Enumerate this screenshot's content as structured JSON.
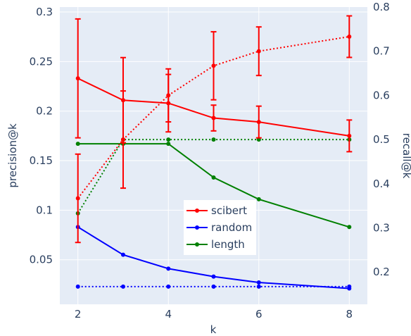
{
  "chart_data": {
    "type": "line",
    "xlabel": "k",
    "ylabel_left": "precision@k",
    "ylabel_right": "recall@k",
    "x": [
      2,
      3,
      4,
      5,
      6,
      8
    ],
    "x_ticks": [
      2,
      4,
      6,
      8
    ],
    "x_range": [
      1.6,
      8.4
    ],
    "y_left": {
      "range": [
        0.005,
        0.305
      ],
      "ticks": [
        0.05,
        0.1,
        0.15,
        0.2,
        0.25,
        0.3
      ],
      "tick_labels": [
        "0.05",
        "0.1",
        "0.15",
        "0.2",
        "0.25",
        "0.3"
      ]
    },
    "y_right": {
      "range": [
        0.127,
        0.8
      ],
      "ticks": [
        0.2,
        0.3,
        0.4,
        0.5,
        0.6,
        0.7,
        0.8
      ],
      "tick_labels": [
        "0.2",
        "0.3",
        "0.4",
        "0.5",
        "0.6",
        "0.7",
        "0.8"
      ]
    },
    "legend_position": "center",
    "grid": true,
    "series": [
      {
        "name": "scibert",
        "color": "#ff0000",
        "precision": [
          0.233,
          0.211,
          0.208,
          0.193,
          0.189,
          0.175
        ],
        "precision_error": [
          0.06,
          0.043,
          0.029,
          0.013,
          0.016,
          0.016
        ],
        "recall": [
          0.367,
          0.5,
          0.6,
          0.667,
          0.7,
          0.733
        ],
        "recall_error": [
          0.1,
          0.11,
          0.06,
          0.077,
          0.055,
          0.047
        ]
      },
      {
        "name": "random",
        "color": "#0000ff",
        "precision": [
          0.083,
          0.055,
          0.041,
          0.033,
          0.027,
          0.021
        ],
        "recall": [
          0.167,
          0.167,
          0.167,
          0.167,
          0.167,
          0.167
        ]
      },
      {
        "name": "length",
        "color": "#008000",
        "precision": [
          0.167,
          0.167,
          0.167,
          0.133,
          0.111,
          0.083
        ],
        "recall": [
          0.333,
          0.5,
          0.5,
          0.5,
          0.5,
          0.5
        ]
      }
    ]
  }
}
